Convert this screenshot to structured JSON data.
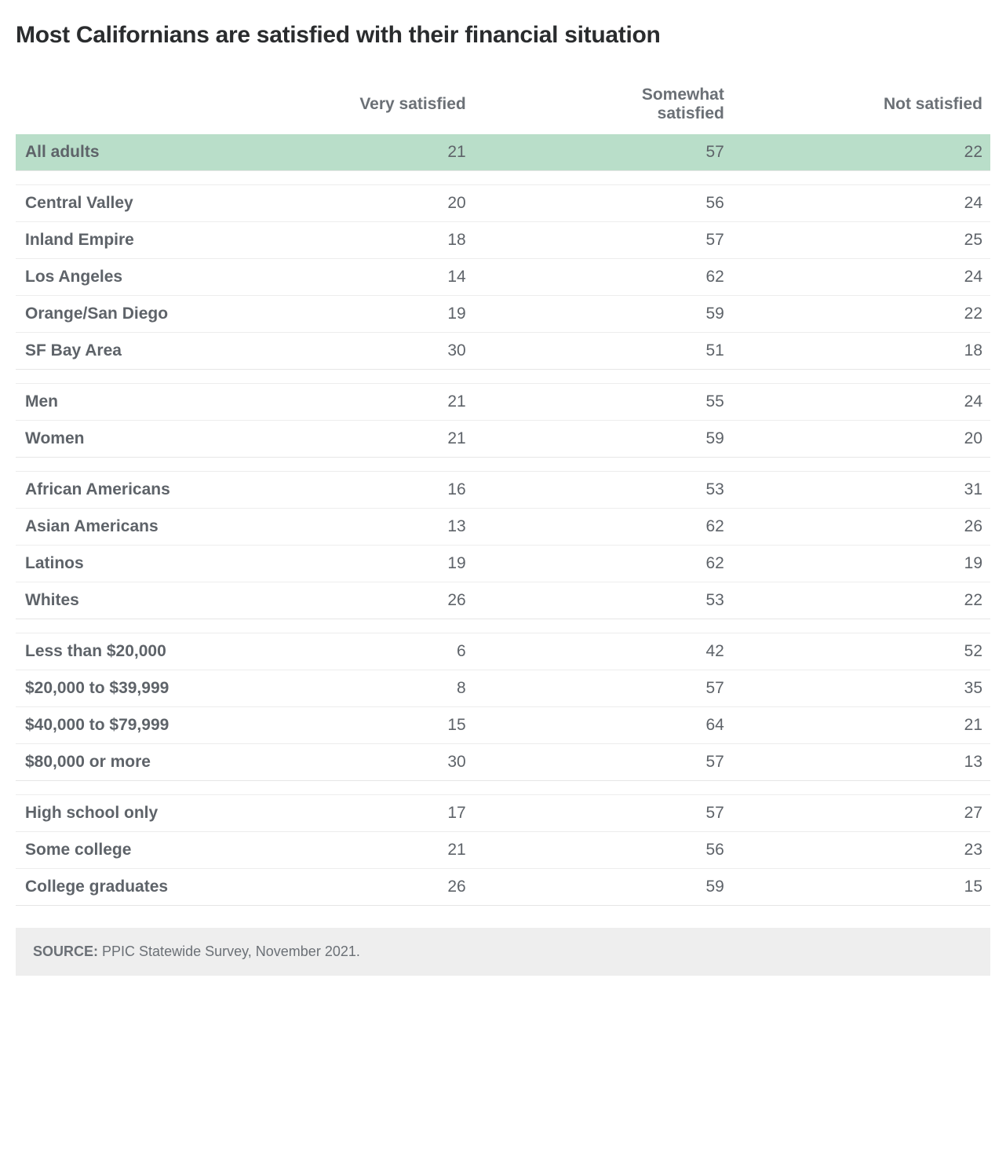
{
  "title": "Most Californians are satisfied with their financial situation",
  "type": "table",
  "columns": [
    "",
    "Very satisfied",
    "Somewhat satisfied",
    "Not satisfied"
  ],
  "column_alignments": [
    "left",
    "right",
    "right",
    "right"
  ],
  "highlight_row_bg": "#b9dec9",
  "row_border_color": "#ededed",
  "text_color": "#5e6369",
  "header_text_color": "#6b7076",
  "title_color": "#2a2c2e",
  "background_color": "#ffffff",
  "source_bg": "#eeeeee",
  "title_fontsize": 30,
  "cell_fontsize": 21,
  "source_fontsize": 18,
  "groups": [
    {
      "highlight": true,
      "rows": [
        {
          "label": "All adults",
          "values": [
            21,
            57,
            22
          ]
        }
      ]
    },
    {
      "rows": [
        {
          "label": "Central Valley",
          "values": [
            20,
            56,
            24
          ]
        },
        {
          "label": "Inland Empire",
          "values": [
            18,
            57,
            25
          ]
        },
        {
          "label": "Los Angeles",
          "values": [
            14,
            62,
            24
          ]
        },
        {
          "label": "Orange/San Diego",
          "values": [
            19,
            59,
            22
          ]
        },
        {
          "label": "SF Bay Area",
          "values": [
            30,
            51,
            18
          ]
        }
      ]
    },
    {
      "rows": [
        {
          "label": "Men",
          "values": [
            21,
            55,
            24
          ]
        },
        {
          "label": "Women",
          "values": [
            21,
            59,
            20
          ]
        }
      ]
    },
    {
      "rows": [
        {
          "label": "African Americans",
          "values": [
            16,
            53,
            31
          ]
        },
        {
          "label": "Asian Americans",
          "values": [
            13,
            62,
            26
          ]
        },
        {
          "label": "Latinos",
          "values": [
            19,
            62,
            19
          ]
        },
        {
          "label": "Whites",
          "values": [
            26,
            53,
            22
          ]
        }
      ]
    },
    {
      "rows": [
        {
          "label": "Less than $20,000",
          "values": [
            6,
            42,
            52
          ]
        },
        {
          "label": "$20,000 to $39,999",
          "values": [
            8,
            57,
            35
          ]
        },
        {
          "label": "$40,000 to $79,999",
          "values": [
            15,
            64,
            21
          ]
        },
        {
          "label": "$80,000 or more",
          "values": [
            30,
            57,
            13
          ]
        }
      ]
    },
    {
      "rows": [
        {
          "label": "High school only",
          "values": [
            17,
            57,
            27
          ]
        },
        {
          "label": "Some college",
          "values": [
            21,
            56,
            23
          ]
        },
        {
          "label": "College graduates",
          "values": [
            26,
            59,
            15
          ]
        }
      ]
    }
  ],
  "source_label": "SOURCE:",
  "source_text": "PPIC Statewide Survey, November 2021."
}
